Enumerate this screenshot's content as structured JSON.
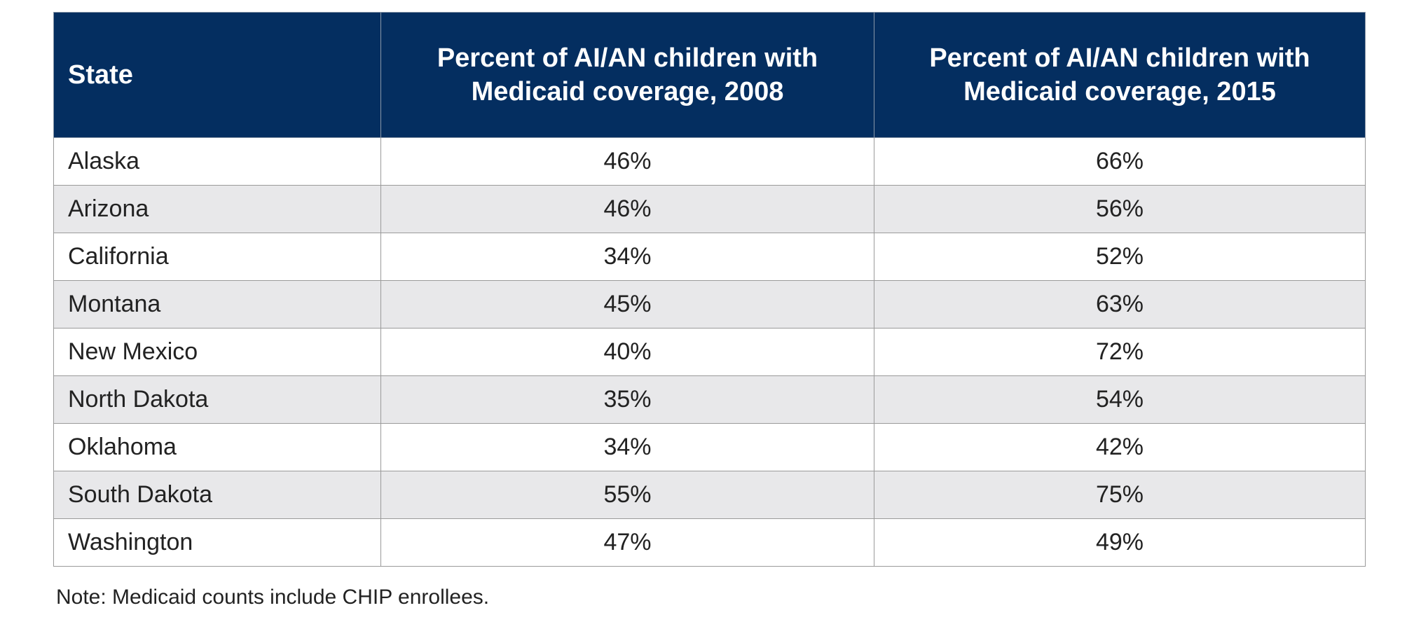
{
  "table": {
    "headers": {
      "state": "State",
      "col_2008": "Percent of AI/AN children with Medicaid coverage, 2008",
      "col_2015": "Percent of AI/AN children with Medicaid coverage, 2015"
    },
    "rows": [
      {
        "state": "Alaska",
        "v2008": "46%",
        "v2015": "66%"
      },
      {
        "state": "Arizona",
        "v2008": "46%",
        "v2015": "56%"
      },
      {
        "state": "California",
        "v2008": "34%",
        "v2015": "52%"
      },
      {
        "state": "Montana",
        "v2008": "45%",
        "v2015": "63%"
      },
      {
        "state": "New Mexico",
        "v2008": "40%",
        "v2015": "72%"
      },
      {
        "state": "North Dakota",
        "v2008": "35%",
        "v2015": "54%"
      },
      {
        "state": "Oklahoma",
        "v2008": "34%",
        "v2015": "42%"
      },
      {
        "state": "South Dakota",
        "v2008": "55%",
        "v2015": "75%"
      },
      {
        "state": "Washington",
        "v2008": "47%",
        "v2015": "49%"
      }
    ]
  },
  "note": "Note: Medicaid counts include CHIP enrollees.",
  "colors": {
    "header_bg": "#042e60",
    "header_text": "#ffffff",
    "stripe_bg": "#e8e8ea"
  }
}
